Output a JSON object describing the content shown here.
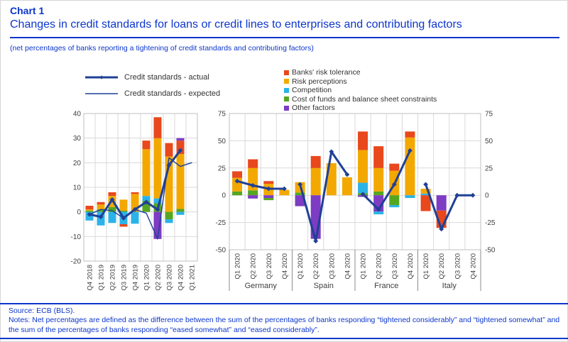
{
  "header": {
    "kicker": "Chart 1",
    "title": "Changes in credit standards for loans or credit lines to enterprises and contributing factors",
    "subtitle": "(net percentages of banks reporting a tightening of credit standards and contributing factors)"
  },
  "colors": {
    "accent_blue": "#0d36cc",
    "line_navy": "#1f4096",
    "grid": "#d9d9d9",
    "frame": "#bfbfbf",
    "axis_text": "#3f3f3f",
    "separator_dark": "#8c8c8c",
    "legend_text": "#333333",
    "factors": {
      "risk_tolerance": "#e8481c",
      "risk_perceptions": "#f3a800",
      "competition": "#2bb3e8",
      "cost_of_funds": "#55a621",
      "other_factors": "#7d3cc3"
    }
  },
  "legend_lines": [
    {
      "label": "Credit standards - actual",
      "style": "thick",
      "markers": true
    },
    {
      "label": "Credit standards - expected",
      "style": "thin",
      "markers": false
    }
  ],
  "legend_factors": [
    {
      "label": "Banks' risk tolerance",
      "factor": "risk_tolerance"
    },
    {
      "label": "Risk perceptions",
      "factor": "risk_perceptions"
    },
    {
      "label": "Competition",
      "factor": "competition"
    },
    {
      "label": "Cost of funds and balance sheet constraints",
      "factor": "cost_of_funds"
    },
    {
      "label": "Other factors",
      "factor": "other_factors"
    }
  ],
  "chart_data": [
    {
      "id": "euro-area",
      "type": "bar",
      "subtype": "stacked-bars-with-lines",
      "ylim": [
        -20,
        40
      ],
      "ytick_step": 10,
      "grid": true,
      "categories": [
        "Q4 2018",
        "Q1 2019",
        "Q2 2019",
        "Q3 2019",
        "Q4 2019",
        "Q1 2020",
        "Q2 2020",
        "Q3 2020",
        "Q4 2020",
        "Q1 2021"
      ],
      "bars": [
        {
          "segments": [
            [
              "cost_of_funds",
              0.5
            ],
            [
              "risk_perceptions",
              0.5
            ],
            [
              "risk_tolerance",
              1.5
            ],
            [
              "competition",
              -3.5
            ]
          ]
        },
        {
          "segments": [
            [
              "cost_of_funds",
              1
            ],
            [
              "risk_perceptions",
              2
            ],
            [
              "risk_tolerance",
              1
            ],
            [
              "competition",
              -5.5
            ]
          ]
        },
        {
          "segments": [
            [
              "cost_of_funds",
              2
            ],
            [
              "risk_perceptions",
              4.5
            ],
            [
              "risk_tolerance",
              1.5
            ],
            [
              "competition",
              -4.5
            ]
          ]
        },
        {
          "segments": [
            [
              "cost_of_funds",
              0.5
            ],
            [
              "risk_perceptions",
              4.5
            ],
            [
              "competition",
              -5
            ],
            [
              "risk_tolerance",
              -1
            ]
          ]
        },
        {
          "segments": [
            [
              "risk_perceptions",
              7.3
            ],
            [
              "risk_tolerance",
              0.7
            ],
            [
              "competition",
              -4.8
            ]
          ]
        },
        {
          "segments": [
            [
              "cost_of_funds",
              4.5
            ],
            [
              "competition",
              2
            ],
            [
              "risk_perceptions",
              19
            ],
            [
              "risk_tolerance",
              3.5
            ]
          ]
        },
        {
          "segments": [
            [
              "cost_of_funds",
              3.5
            ],
            [
              "competition",
              2
            ],
            [
              "risk_perceptions",
              24.5
            ],
            [
              "risk_tolerance",
              8.5
            ],
            [
              "other_factors",
              -11
            ]
          ]
        },
        {
          "segments": [
            [
              "risk_perceptions",
              22.5
            ],
            [
              "risk_tolerance",
              5.5
            ],
            [
              "cost_of_funds",
              -3
            ],
            [
              "competition",
              -1.5
            ]
          ]
        },
        {
          "segments": [
            [
              "cost_of_funds",
              1.2
            ],
            [
              "risk_perceptions",
              22.3
            ],
            [
              "risk_tolerance",
              5.5
            ],
            [
              "other_factors",
              1
            ],
            [
              "competition",
              -1.2
            ]
          ]
        },
        {
          "segments": []
        }
      ],
      "lines": [
        {
          "name": "Credit standards - expected",
          "style": "thin",
          "markers": false,
          "values": [
            -1,
            1,
            0.5,
            -2.5,
            1,
            -0.5,
            -11,
            22,
            18.5,
            20
          ]
        },
        {
          "name": "Credit standards - actual",
          "style": "thick",
          "markers": true,
          "values": [
            -1,
            -2,
            5,
            -2.5,
            1,
            4,
            1,
            19,
            25,
            null
          ]
        }
      ]
    },
    {
      "id": "countries",
      "type": "bar",
      "subtype": "grouped-stacked-bars-with-lines",
      "ylim": [
        -50,
        75
      ],
      "ytick_step": 25,
      "grid": true,
      "quarter_labels": [
        "Q1 2020",
        "Q2 2020",
        "Q3 2020",
        "Q4 2020"
      ],
      "groups": [
        {
          "label": "Germany",
          "bars": [
            {
              "segments": [
                [
                  "cost_of_funds",
                  3.5
                ],
                [
                  "risk_perceptions",
                  12.5
                ],
                [
                  "risk_tolerance",
                  6
                ]
              ]
            },
            {
              "segments": [
                [
                  "cost_of_funds",
                  4.5
                ],
                [
                  "risk_perceptions",
                  20.5
                ],
                [
                  "risk_tolerance",
                  8
                ],
                [
                  "other_factors",
                  -3
                ]
              ]
            },
            {
              "segments": [
                [
                  "risk_perceptions",
                  10.5
                ],
                [
                  "risk_tolerance",
                  2.5
                ],
                [
                  "other_factors",
                  -2.5
                ],
                [
                  "cost_of_funds",
                  -2
                ]
              ]
            },
            {
              "segments": [
                [
                  "risk_perceptions",
                  5
                ]
              ]
            }
          ],
          "line_actual": [
            13,
            9,
            6,
            6
          ]
        },
        {
          "label": "Spain",
          "bars": [
            {
              "segments": [
                [
                  "cost_of_funds",
                  2.5
                ],
                [
                  "risk_perceptions",
                  9.5
                ],
                [
                  "other_factors",
                  -10
                ]
              ]
            },
            {
              "segments": [
                [
                  "risk_perceptions",
                  25
                ],
                [
                  "risk_tolerance",
                  11
                ],
                [
                  "other_factors",
                  -40
                ]
              ]
            },
            {
              "segments": [
                [
                  "risk_perceptions",
                  29.5
                ]
              ]
            },
            {
              "segments": [
                [
                  "risk_perceptions",
                  16.5
                ]
              ]
            }
          ],
          "line_actual": [
            10,
            -42,
            40,
            19
          ]
        },
        {
          "label": "France",
          "bars": [
            {
              "segments": [
                [
                  "cost_of_funds",
                  2
                ],
                [
                  "competition",
                  9.5
                ],
                [
                  "risk_perceptions",
                  30
                ],
                [
                  "risk_tolerance",
                  17
                ],
                [
                  "other_factors",
                  -1.5
                ]
              ]
            },
            {
              "segments": [
                [
                  "cost_of_funds",
                  3.5
                ],
                [
                  "risk_perceptions",
                  21.5
                ],
                [
                  "risk_tolerance",
                  20
                ],
                [
                  "other_factors",
                  -15
                ],
                [
                  "competition",
                  -2.5
                ]
              ]
            },
            {
              "segments": [
                [
                  "risk_perceptions",
                  22.5
                ],
                [
                  "risk_tolerance",
                  6.5
                ],
                [
                  "cost_of_funds",
                  -9
                ],
                [
                  "competition",
                  -2
                ]
              ]
            },
            {
              "segments": [
                [
                  "risk_perceptions",
                  53
                ],
                [
                  "risk_tolerance",
                  5.5
                ],
                [
                  "competition",
                  -2.5
                ]
              ]
            }
          ],
          "line_actual": [
            1,
            -13,
            10,
            41
          ]
        },
        {
          "label": "Italy",
          "bars": [
            {
              "segments": [
                [
                  "competition",
                  1.5
                ],
                [
                  "risk_perceptions",
                  4.5
                ],
                [
                  "risk_tolerance",
                  -14.5
                ]
              ]
            },
            {
              "segments": [
                [
                  "other_factors",
                  -14
                ],
                [
                  "risk_tolerance",
                  -16
                ]
              ]
            },
            {
              "segments": []
            },
            {
              "segments": []
            }
          ],
          "line_actual": [
            10,
            -31,
            0,
            0
          ]
        }
      ]
    }
  ],
  "footer": {
    "source": "Source: ECB (BLS).",
    "notes": "Notes: Net percentages are defined as the difference between the sum of the percentages of banks responding “tightened considerably” and “tightened somewhat” and the sum of the percentages of banks responding “eased somewhat” and “eased considerably”."
  }
}
